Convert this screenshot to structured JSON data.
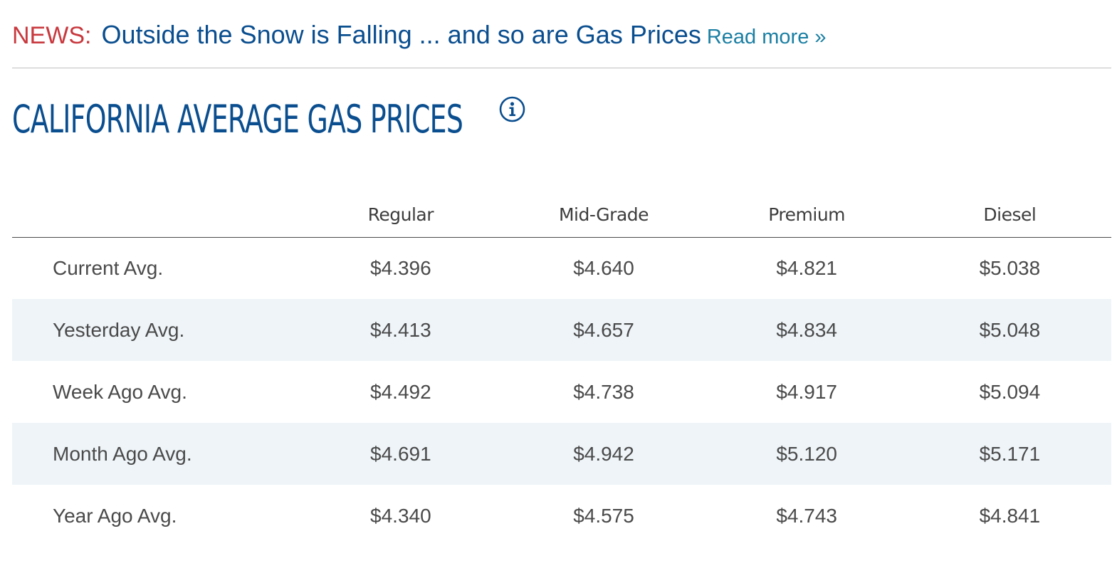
{
  "news": {
    "label": "NEWS:",
    "headline": "Outside the Snow is Falling ... and so are Gas Prices",
    "read_more": "Read more »"
  },
  "page_title": "CALIFORNIA AVERAGE GAS PRICES",
  "info_icon": "info-circle-icon",
  "colors": {
    "news_label": "#c8393e",
    "headline": "#0a4e8f",
    "read_more": "#1a7fa3",
    "title": "#0a4e8f",
    "row_shade": "#eef4f8"
  },
  "table": {
    "columns": [
      "",
      "Regular",
      "Mid-Grade",
      "Premium",
      "Diesel"
    ],
    "rows": [
      {
        "label": "Current Avg.",
        "values": [
          "$4.396",
          "$4.640",
          "$4.821",
          "$5.038"
        ]
      },
      {
        "label": "Yesterday Avg.",
        "values": [
          "$4.413",
          "$4.657",
          "$4.834",
          "$5.048"
        ]
      },
      {
        "label": "Week Ago Avg.",
        "values": [
          "$4.492",
          "$4.738",
          "$4.917",
          "$5.094"
        ]
      },
      {
        "label": "Month Ago Avg.",
        "values": [
          "$4.691",
          "$4.942",
          "$5.120",
          "$5.171"
        ]
      },
      {
        "label": "Year Ago Avg.",
        "values": [
          "$4.340",
          "$4.575",
          "$4.743",
          "$4.841"
        ]
      }
    ]
  }
}
